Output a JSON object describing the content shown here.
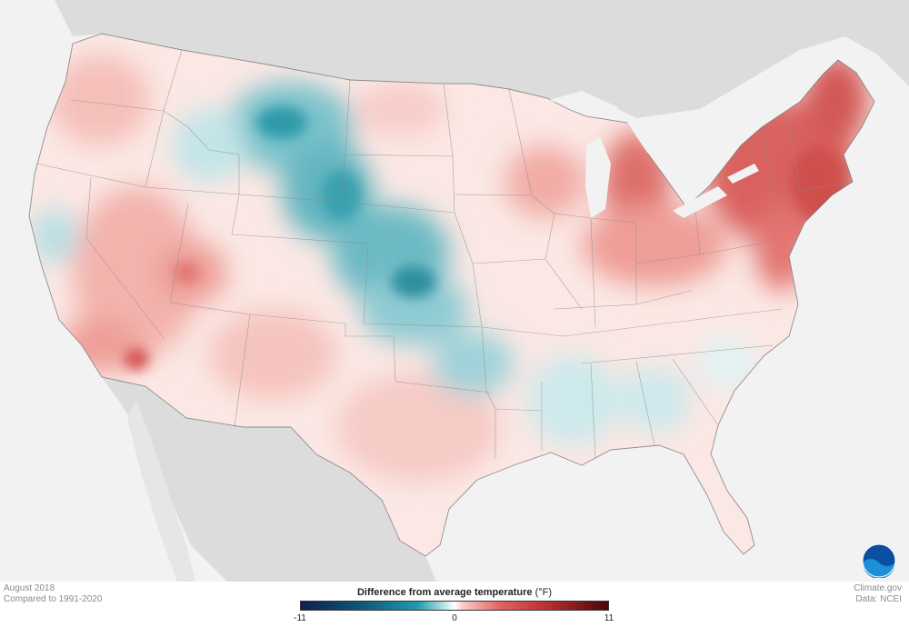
{
  "map": {
    "date": "August 2018",
    "comparison": "Compared to 1991-2020",
    "credit_source": "Climate.gov",
    "credit_data": "Data: NCEI",
    "logo_text": "NOAA"
  },
  "legend": {
    "title": "Difference from average temperature",
    "unit": "(°F)",
    "min_label": "-11",
    "mid_label": "0",
    "max_label": "11",
    "min": -11,
    "max": 11
  },
  "colors": {
    "cold_extreme": "#0b1f4d",
    "cold": "#1f9bad",
    "neutral": "#ffffff",
    "warm": "#e2645e",
    "warm_extreme": "#4a0606",
    "land_outside": "#dcdcdc",
    "water": "#f2f2f2"
  }
}
